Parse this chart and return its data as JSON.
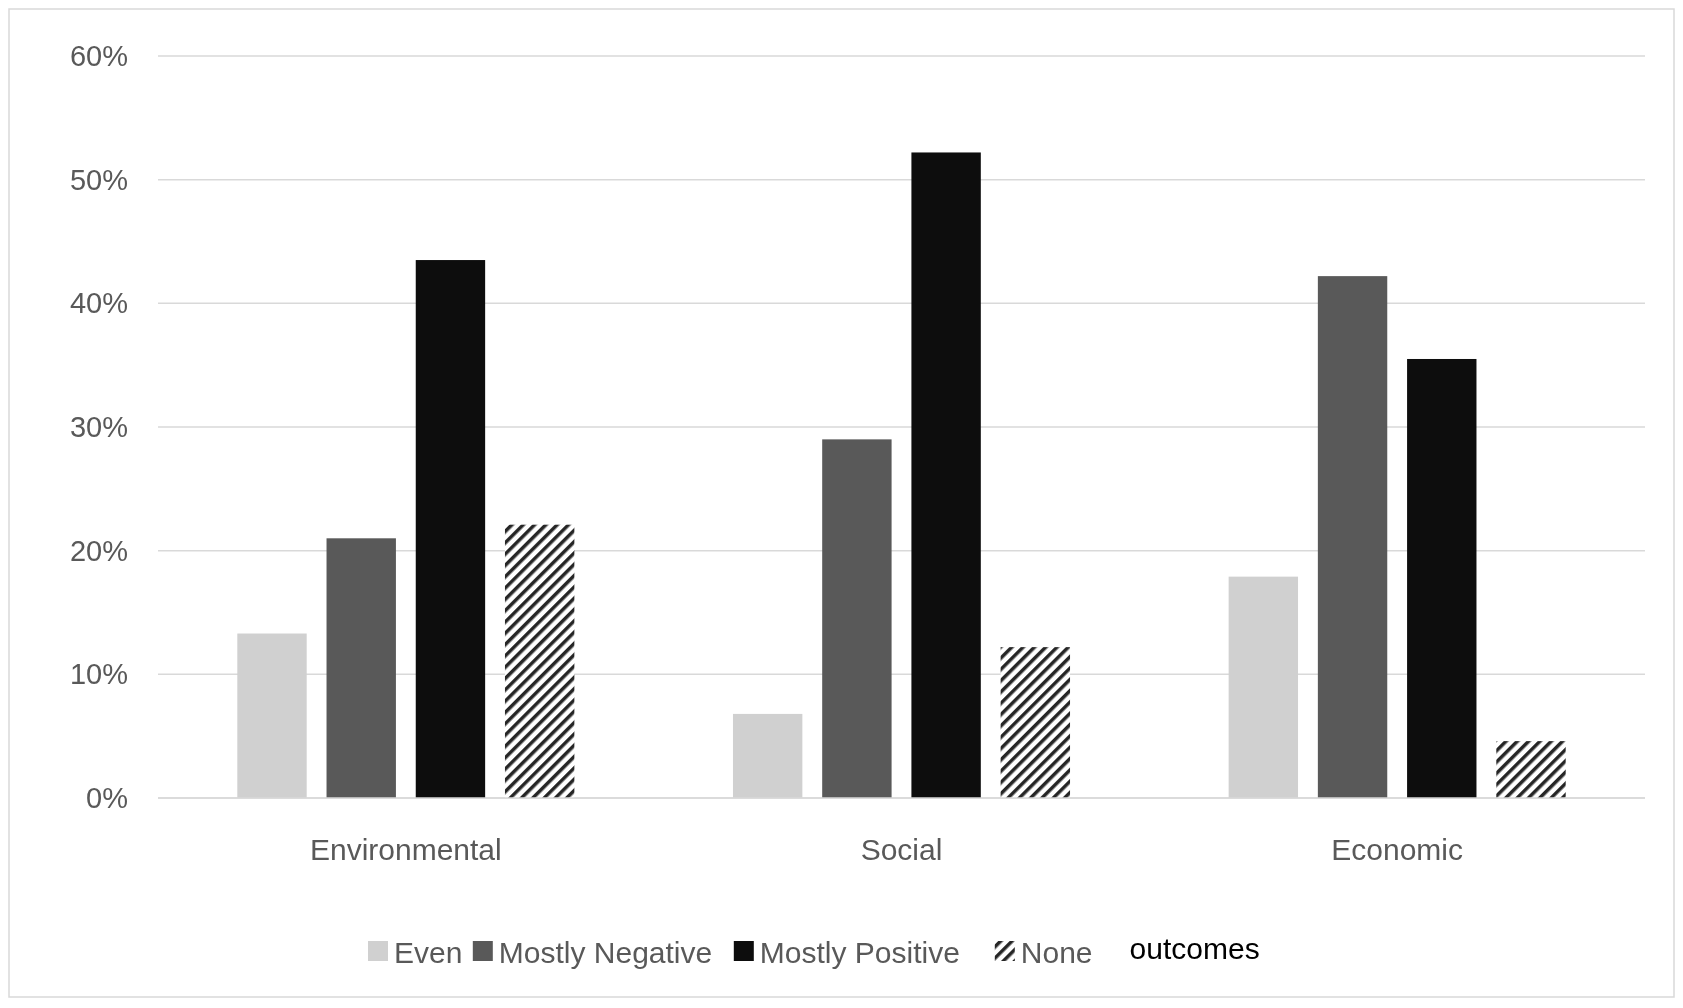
{
  "chart_data": {
    "type": "bar",
    "categories": [
      "Environmental",
      "Social",
      "Economic"
    ],
    "series": [
      {
        "name": "Even",
        "color": "#d0d0d0",
        "values": [
          13.3,
          6.8,
          17.9
        ]
      },
      {
        "name": "Mostly Negative",
        "color": "#595959",
        "values": [
          21.0,
          29.0,
          42.2
        ]
      },
      {
        "name": "Mostly Positive",
        "color": "#0d0d0d",
        "values": [
          43.5,
          52.2,
          35.5
        ]
      },
      {
        "name": "None",
        "color": "#262626",
        "values": [
          22.1,
          12.2,
          4.6
        ]
      }
    ],
    "ylim": [
      0,
      60
    ],
    "yticks": [
      {
        "value": 0,
        "label": "0%"
      },
      {
        "value": 10,
        "label": "10%"
      },
      {
        "value": 20,
        "label": "20%"
      },
      {
        "value": 30,
        "label": "30%"
      },
      {
        "value": 40,
        "label": "40%"
      },
      {
        "value": 50,
        "label": "50%"
      },
      {
        "value": 60,
        "label": "60%"
      }
    ],
    "grid": "y",
    "legend": "bottom",
    "legend_title": "outcomes"
  }
}
